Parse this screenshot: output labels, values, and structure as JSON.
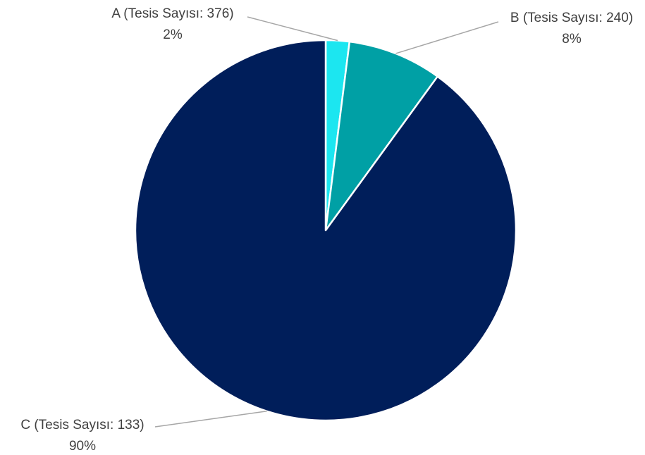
{
  "chart_data": {
    "type": "pie",
    "title": "",
    "slices": [
      {
        "label": "A (Tesis Sayısı: 376)",
        "percent_label": "2%",
        "value": 2,
        "color": "#1CE6F0"
      },
      {
        "label": "B (Tesis Sayısı: 240)",
        "percent_label": "8%",
        "value": 8,
        "color": "#00A0A5"
      },
      {
        "label": "C (Tesis Sayısı: 133)",
        "percent_label": "90%",
        "value": 90,
        "color": "#001E5A"
      }
    ],
    "start_angle_deg": 0,
    "direction": "clockwise",
    "slice_border_color": "#FFFFFF",
    "leader_line_color": "#A6A6A6",
    "label_text_color": "#404040",
    "legend": "none"
  }
}
